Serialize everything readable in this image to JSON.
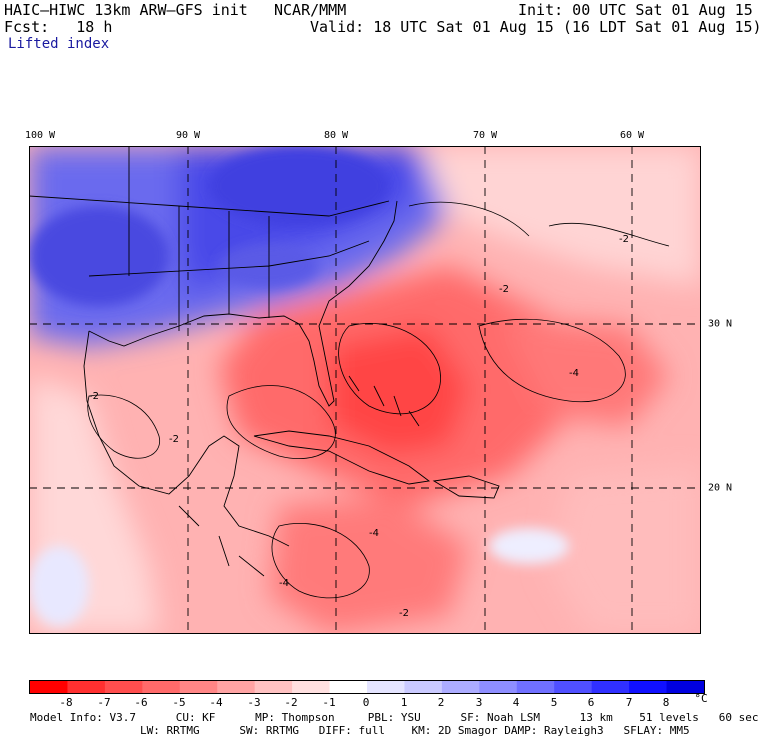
{
  "header": {
    "model": "HAIC–HIWC 13km ARW–GFS init",
    "org": "NCAR/MMM",
    "init": "Init: 00 UTC Sat 01 Aug 15",
    "fcst": "Fcst:   18 h",
    "valid": "Valid: 18 UTC Sat 01 Aug 15 (16 LDT Sat 01 Aug 15)",
    "field": "Lifted index"
  },
  "map": {
    "lon_labels": [
      "100 W",
      "90 W",
      "80 W",
      "70 W",
      "60 W"
    ],
    "lat_labels": [
      "30 N",
      "20 N"
    ],
    "contour_labels": [
      "-2",
      "-4"
    ]
  },
  "colorbar": {
    "labels": [
      "-8",
      "-7",
      "-6",
      "-5",
      "-4",
      "-3",
      "-2",
      "-1",
      "0",
      "1",
      "2",
      "3",
      "4",
      "5",
      "6",
      "7",
      "8"
    ],
    "unit": "°C",
    "colors": [
      "#ff0000",
      "#ff3030",
      "#ff4e4e",
      "#ff6a6a",
      "#ff8686",
      "#ffa4a4",
      "#ffc2c2",
      "#ffe0e0",
      "#ffffff",
      "#e4e4ff",
      "#cacaff",
      "#acacff",
      "#8e8eff",
      "#7070ff",
      "#5050ff",
      "#3030ff",
      "#1010ff",
      "#0000e0"
    ]
  },
  "footer": {
    "line1": "Model Info: V3.7      CU: KF      MP: Thompson     PBL: YSU      SF: Noah LSM      13 km    51 levels   60 sec",
    "line2": "LW: RRTMG      SW: RRTMG   DIFF: full    KM: 2D Smagor DAMP: Rayleigh3   SFLAY: MM5"
  }
}
